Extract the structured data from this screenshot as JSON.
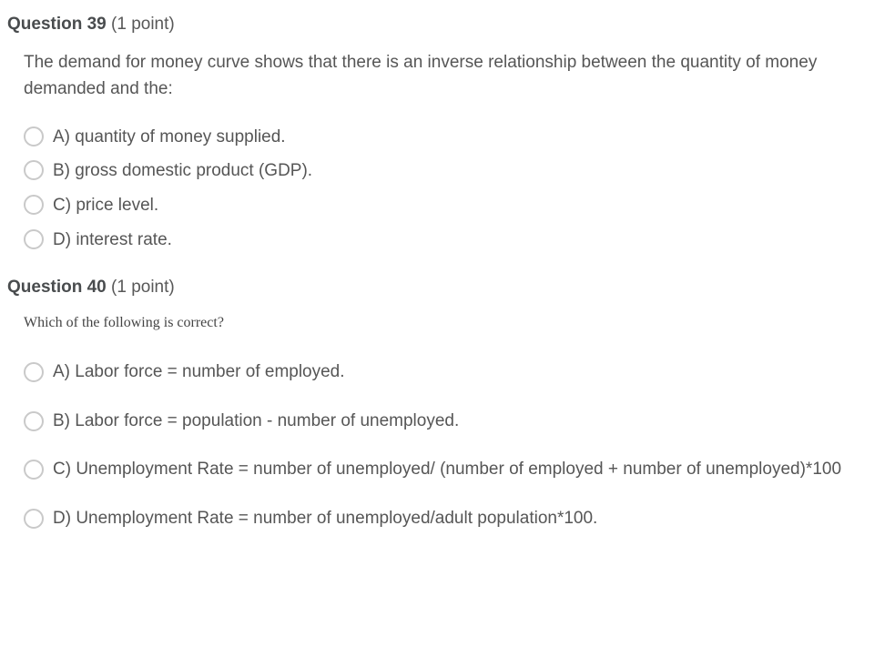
{
  "questions": [
    {
      "number": "Question 39",
      "points": "(1 point)",
      "prompt": "The demand for money curve shows that there is an inverse relationship between the quantity of money demanded and the:",
      "prompt_style": "sans",
      "options_spacing": "tight",
      "options": [
        "A) quantity of money supplied.",
        "B) gross domestic product (GDP).",
        "C) price level.",
        "D) interest rate."
      ]
    },
    {
      "number": "Question 40",
      "points": "(1 point)",
      "prompt": "Which of the following is correct?",
      "prompt_style": "serif",
      "options_spacing": "spaced",
      "options": [
        "A)  Labor force = number of   employed.",
        "B)  Labor force = population -   number of unemployed.",
        "C)  Unemployment   Rate = number of unemployed/ (number of employed + number of unemployed)*100",
        "D)  Unemployment   Rate = number of unemployed/adult population*100."
      ]
    }
  ],
  "colors": {
    "text": "#565656",
    "heading": "#494c4e",
    "radio_border": "#c9c9c9",
    "background": "#ffffff"
  }
}
